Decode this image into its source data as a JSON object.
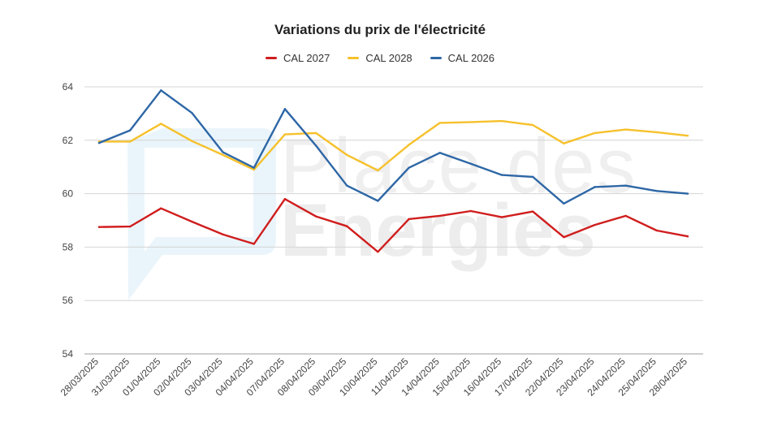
{
  "chart_data": {
    "type": "line",
    "title": "Variations du prix de l'électricité",
    "xlabel": "",
    "ylabel": "",
    "categories": [
      "28/03/2025",
      "31/03/2025",
      "01/04/2025",
      "02/04/2025",
      "03/04/2025",
      "04/04/2025",
      "07/04/2025",
      "08/04/2025",
      "09/04/2025",
      "10/04/2025",
      "11/04/2025",
      "14/04/2025",
      "15/04/2025",
      "16/04/2025",
      "17/04/2025",
      "22/04/2025",
      "23/04/2025",
      "24/04/2025",
      "25/04/2025",
      "28/04/2025"
    ],
    "ylim": [
      54,
      64
    ],
    "yticks": [
      54,
      56,
      58,
      60,
      62,
      64
    ],
    "grid": true,
    "legend_position": "top-center",
    "series": [
      {
        "name": "CAL 2027",
        "color": "#d01d1d",
        "values": [
          58.75,
          58.77,
          59.45,
          58.95,
          58.47,
          58.12,
          59.8,
          59.15,
          58.78,
          57.82,
          59.05,
          59.17,
          59.35,
          59.12,
          59.33,
          58.37,
          58.83,
          59.17,
          58.62,
          58.4
        ]
      },
      {
        "name": "CAL 2028",
        "color": "#f6c12c",
        "values": [
          61.95,
          61.95,
          62.62,
          61.97,
          61.45,
          60.9,
          62.22,
          62.27,
          61.45,
          60.87,
          61.83,
          62.65,
          62.68,
          62.72,
          62.57,
          61.88,
          62.27,
          62.4,
          62.3,
          62.17
        ]
      },
      {
        "name": "CAL 2026",
        "color": "#2e67a6",
        "values": [
          61.9,
          62.37,
          63.87,
          63.02,
          61.55,
          60.97,
          63.17,
          61.8,
          60.3,
          59.73,
          60.97,
          61.53,
          61.12,
          60.7,
          60.63,
          59.63,
          60.25,
          60.3,
          60.1,
          60.0
        ]
      }
    ]
  },
  "watermark": {
    "line1": "Place des",
    "line2": "Energies"
  }
}
